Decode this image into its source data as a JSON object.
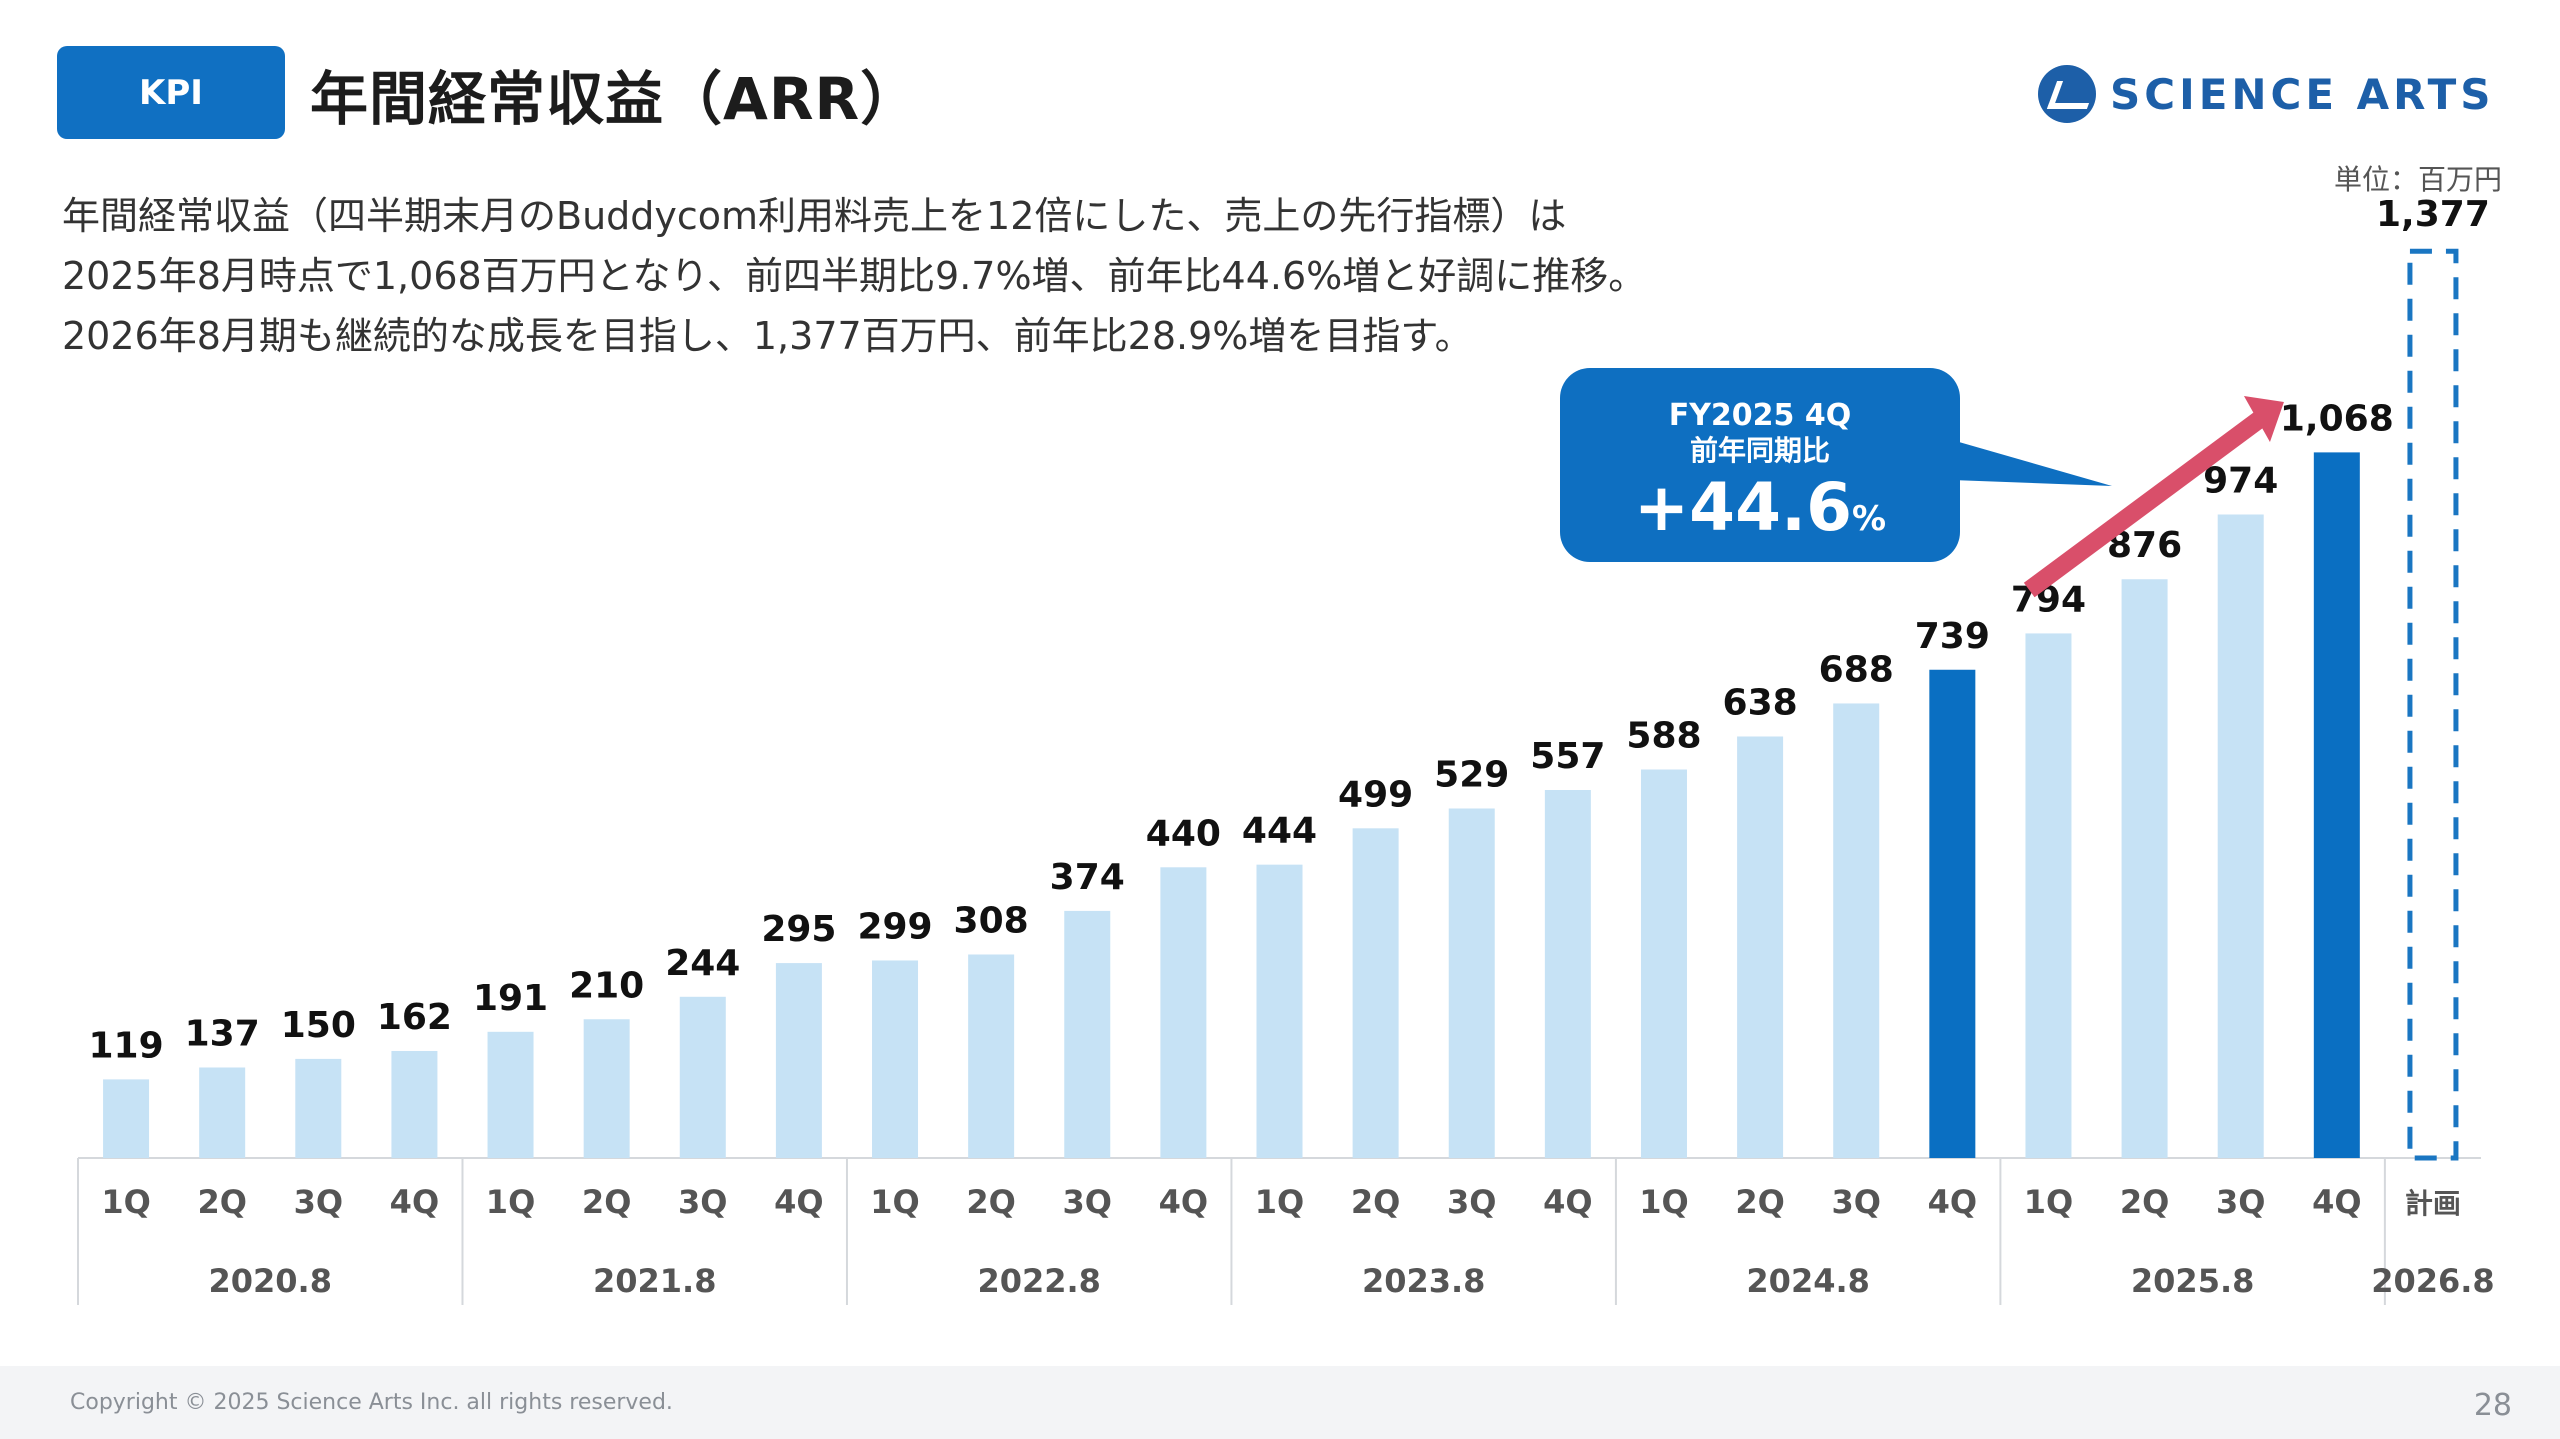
{
  "header": {
    "badge": "KPI",
    "title": "年間経常収益（ARR）",
    "logo_text": "SCIENCE ARTS",
    "unit": "単位：百万円"
  },
  "description": [
    "年間経常収益（四半期末月のBuddycom利用料売上を12倍にした、売上の先行指標）は",
    "2025年8月時点で1,068百万円となり、前四半期比9.7%増、前年比44.6%増と好調に推移。",
    "2026年8月期も継続的な成長を目指し、1,377百万円、前年比28.9%増を目指す。"
  ],
  "callout": {
    "line1": "FY2025 4Q",
    "line2": "前年同期比",
    "value": "+44.6",
    "unit": "%"
  },
  "colors": {
    "light_bar": "#c6e2f5",
    "highlight_bar": "#0a6fc2",
    "plan_bar": "#1a76c2",
    "arrow": "#d94f6a",
    "callout": "#0e6fc1"
  },
  "chart_data": {
    "type": "bar",
    "ylim": [
      0,
      1450
    ],
    "categories": [
      "1Q",
      "2Q",
      "3Q",
      "4Q",
      "1Q",
      "2Q",
      "3Q",
      "4Q",
      "1Q",
      "2Q",
      "3Q",
      "4Q",
      "1Q",
      "2Q",
      "3Q",
      "4Q",
      "1Q",
      "2Q",
      "3Q",
      "4Q",
      "1Q",
      "2Q",
      "3Q",
      "4Q",
      "計画"
    ],
    "values": [
      119,
      137,
      150,
      162,
      191,
      210,
      244,
      295,
      299,
      308,
      374,
      440,
      444,
      499,
      529,
      557,
      588,
      638,
      688,
      739,
      794,
      876,
      974,
      1068,
      1377
    ],
    "labels": [
      "119",
      "137",
      "150",
      "162",
      "191",
      "210",
      "244",
      "295",
      "299",
      "308",
      "374",
      "440",
      "444",
      "499",
      "529",
      "557",
      "588",
      "638",
      "688",
      "739",
      "794",
      "876",
      "974",
      "1,068",
      "1,377"
    ],
    "highlight": [
      false,
      false,
      false,
      false,
      false,
      false,
      false,
      false,
      false,
      false,
      false,
      false,
      false,
      false,
      false,
      false,
      false,
      false,
      false,
      true,
      false,
      false,
      false,
      true,
      false
    ],
    "plan": [
      false,
      false,
      false,
      false,
      false,
      false,
      false,
      false,
      false,
      false,
      false,
      false,
      false,
      false,
      false,
      false,
      false,
      false,
      false,
      false,
      false,
      false,
      false,
      false,
      true
    ],
    "groups": [
      {
        "label": "2020.8",
        "count": 4
      },
      {
        "label": "2021.8",
        "count": 4
      },
      {
        "label": "2022.8",
        "count": 4
      },
      {
        "label": "2023.8",
        "count": 4
      },
      {
        "label": "2024.8",
        "count": 4
      },
      {
        "label": "2025.8",
        "count": 4
      },
      {
        "label": "2026.8",
        "count": 1
      }
    ]
  },
  "footer": {
    "copyright": "Copyright © 2025 Science Arts Inc. all rights reserved.",
    "page": "28"
  }
}
